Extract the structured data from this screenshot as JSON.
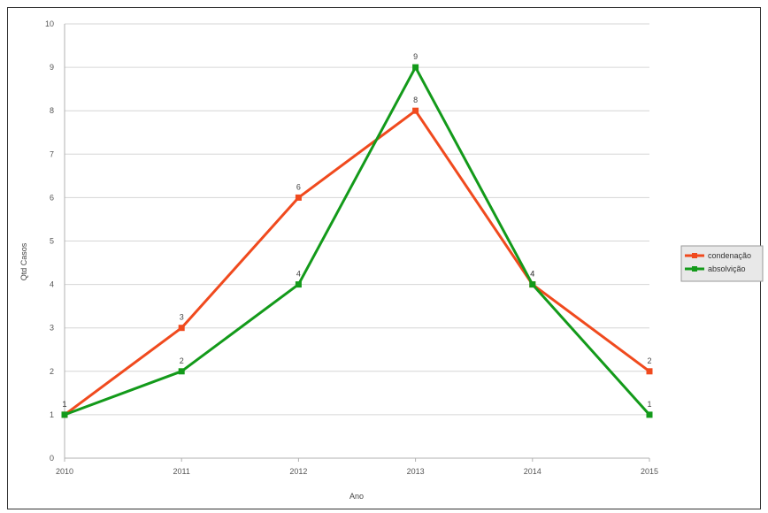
{
  "chart_data": {
    "type": "line",
    "title": "",
    "xlabel": "Ano",
    "ylabel": "Qtd Casos",
    "categories": [
      "2010",
      "2011",
      "2012",
      "2013",
      "2014",
      "2015"
    ],
    "ylim": [
      0,
      10
    ],
    "yticks": [
      "0",
      "1",
      "2",
      "3",
      "4",
      "5",
      "6",
      "7",
      "8",
      "9",
      "10"
    ],
    "grid": true,
    "legend_position": "right",
    "series": [
      {
        "name": "condenação",
        "color": "#f04a1e",
        "values": [
          1,
          3,
          6,
          8,
          4,
          2
        ]
      },
      {
        "name": "absolvição",
        "color": "#139a1a",
        "values": [
          1,
          2,
          4,
          9,
          4,
          1
        ]
      }
    ]
  }
}
